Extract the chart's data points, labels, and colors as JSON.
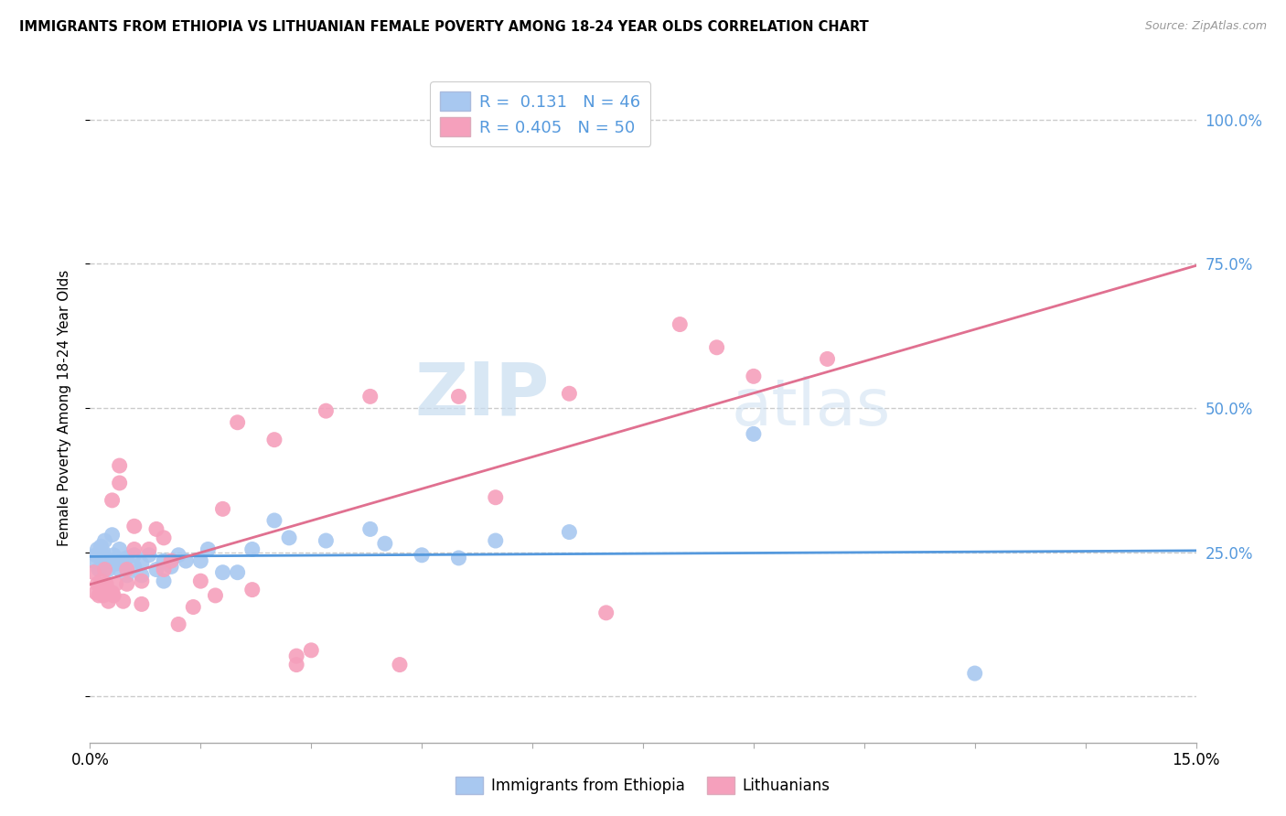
{
  "title": "IMMIGRANTS FROM ETHIOPIA VS LITHUANIAN FEMALE POVERTY AMONG 18-24 YEAR OLDS CORRELATION CHART",
  "source": "Source: ZipAtlas.com",
  "ylabel": "Female Poverty Among 18-24 Year Olds",
  "right_yticklabels": [
    "",
    "25.0%",
    "50.0%",
    "75.0%",
    "100.0%"
  ],
  "xmin": 0.0,
  "xmax": 0.15,
  "ymin": -0.08,
  "ymax": 1.08,
  "blue_color": "#a8c8f0",
  "pink_color": "#f5a0bc",
  "blue_line_color": "#5599dd",
  "pink_line_color": "#e07090",
  "blue_R": 0.131,
  "blue_N": 46,
  "pink_R": 0.405,
  "pink_N": 50,
  "blue_scatter": [
    [
      0.0005,
      0.235
    ],
    [
      0.0008,
      0.245
    ],
    [
      0.001,
      0.255
    ],
    [
      0.0012,
      0.22
    ],
    [
      0.0015,
      0.26
    ],
    [
      0.0018,
      0.25
    ],
    [
      0.002,
      0.24
    ],
    [
      0.002,
      0.27
    ],
    [
      0.0022,
      0.235
    ],
    [
      0.0025,
      0.22
    ],
    [
      0.003,
      0.235
    ],
    [
      0.003,
      0.28
    ],
    [
      0.0032,
      0.245
    ],
    [
      0.0035,
      0.23
    ],
    [
      0.004,
      0.22
    ],
    [
      0.004,
      0.255
    ],
    [
      0.0045,
      0.235
    ],
    [
      0.005,
      0.24
    ],
    [
      0.005,
      0.21
    ],
    [
      0.006,
      0.225
    ],
    [
      0.006,
      0.245
    ],
    [
      0.007,
      0.21
    ],
    [
      0.007,
      0.23
    ],
    [
      0.008,
      0.245
    ],
    [
      0.009,
      0.22
    ],
    [
      0.01,
      0.235
    ],
    [
      0.01,
      0.2
    ],
    [
      0.011,
      0.225
    ],
    [
      0.012,
      0.245
    ],
    [
      0.013,
      0.235
    ],
    [
      0.015,
      0.235
    ],
    [
      0.016,
      0.255
    ],
    [
      0.018,
      0.215
    ],
    [
      0.02,
      0.215
    ],
    [
      0.022,
      0.255
    ],
    [
      0.025,
      0.305
    ],
    [
      0.027,
      0.275
    ],
    [
      0.032,
      0.27
    ],
    [
      0.038,
      0.29
    ],
    [
      0.04,
      0.265
    ],
    [
      0.045,
      0.245
    ],
    [
      0.05,
      0.24
    ],
    [
      0.055,
      0.27
    ],
    [
      0.065,
      0.285
    ],
    [
      0.09,
      0.455
    ],
    [
      0.12,
      0.04
    ]
  ],
  "pink_scatter": [
    [
      0.0005,
      0.215
    ],
    [
      0.0008,
      0.18
    ],
    [
      0.001,
      0.195
    ],
    [
      0.0012,
      0.175
    ],
    [
      0.0015,
      0.2
    ],
    [
      0.0018,
      0.175
    ],
    [
      0.002,
      0.185
    ],
    [
      0.002,
      0.22
    ],
    [
      0.0022,
      0.195
    ],
    [
      0.0025,
      0.165
    ],
    [
      0.003,
      0.18
    ],
    [
      0.003,
      0.34
    ],
    [
      0.0032,
      0.175
    ],
    [
      0.0035,
      0.195
    ],
    [
      0.004,
      0.37
    ],
    [
      0.004,
      0.4
    ],
    [
      0.0045,
      0.165
    ],
    [
      0.005,
      0.22
    ],
    [
      0.005,
      0.195
    ],
    [
      0.006,
      0.255
    ],
    [
      0.006,
      0.295
    ],
    [
      0.007,
      0.16
    ],
    [
      0.007,
      0.2
    ],
    [
      0.008,
      0.255
    ],
    [
      0.009,
      0.29
    ],
    [
      0.01,
      0.22
    ],
    [
      0.01,
      0.275
    ],
    [
      0.011,
      0.235
    ],
    [
      0.012,
      0.125
    ],
    [
      0.014,
      0.155
    ],
    [
      0.015,
      0.2
    ],
    [
      0.017,
      0.175
    ],
    [
      0.018,
      0.325
    ],
    [
      0.02,
      0.475
    ],
    [
      0.022,
      0.185
    ],
    [
      0.025,
      0.445
    ],
    [
      0.028,
      0.055
    ],
    [
      0.028,
      0.07
    ],
    [
      0.03,
      0.08
    ],
    [
      0.032,
      0.495
    ],
    [
      0.038,
      0.52
    ],
    [
      0.042,
      0.055
    ],
    [
      0.05,
      0.52
    ],
    [
      0.055,
      0.345
    ],
    [
      0.065,
      0.525
    ],
    [
      0.07,
      0.145
    ],
    [
      0.08,
      0.645
    ],
    [
      0.085,
      0.605
    ],
    [
      0.09,
      0.555
    ],
    [
      0.1,
      0.585
    ]
  ],
  "watermark_zip": "ZIP",
  "watermark_atlas": "atlas",
  "legend_blue_label": "Immigrants from Ethiopia",
  "legend_pink_label": "Lithuanians",
  "grid_color": "#cccccc",
  "grid_style": "--",
  "ytick_vals": [
    0.0,
    0.25,
    0.5,
    0.75,
    1.0
  ]
}
